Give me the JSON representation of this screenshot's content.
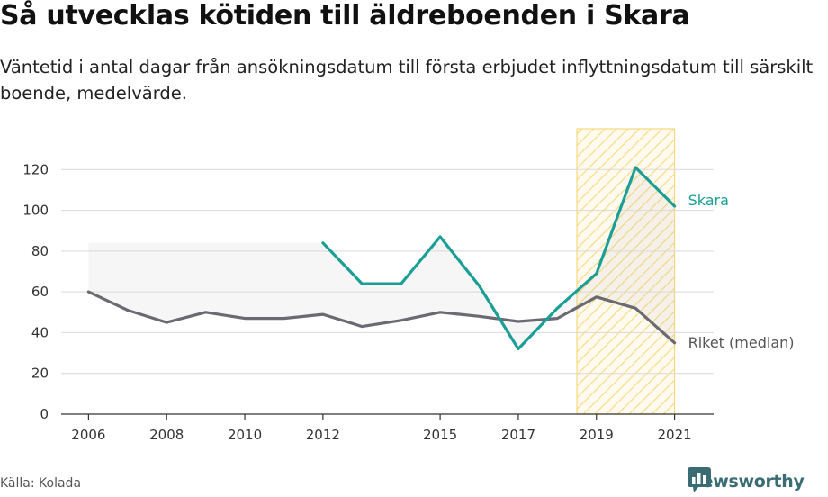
{
  "title": "Så utvecklas kötiden till äldreboenden i Skara",
  "subtitle": "Väntetid i antal dagar från ansökningsdatum till första erbjudet inflyttningsdatum till särskilt boende, medelvärde.",
  "source": "Källa: Kolada",
  "brand": {
    "name": "Newsworthy",
    "icon": "newsworthy-chart-icon",
    "color": "#3a6d73"
  },
  "chart_data": {
    "type": "line",
    "xlim": [
      2005.3,
      2022.0
    ],
    "ylim": [
      0,
      140
    ],
    "x_ticks": [
      "2006",
      "2008",
      "2010",
      "2012",
      "2015",
      "2017",
      "2019",
      "2021"
    ],
    "y_ticks": [
      "0",
      "20",
      "40",
      "60",
      "80",
      "100",
      "120"
    ],
    "grid": true,
    "highlight_band": {
      "x_start": 2018.5,
      "x_end": 2021.0,
      "pattern": "diagonal-hatch",
      "color": "#f8d97a"
    },
    "series": [
      {
        "name": "Skara",
        "color": "#1a9e95",
        "x": [
          2012,
          2013,
          2014,
          2015,
          2016,
          2017,
          2018,
          2019,
          2020,
          2021
        ],
        "y": [
          84,
          64,
          64,
          87,
          63,
          32,
          52,
          69,
          121,
          102
        ]
      },
      {
        "name": "Riket (median)",
        "color": "#6a6a72",
        "x": [
          2006,
          2007,
          2008,
          2009,
          2010,
          2011,
          2012,
          2013,
          2014,
          2015,
          2016,
          2017,
          2018,
          2019,
          2020,
          2021
        ],
        "y": [
          60,
          51,
          45,
          50,
          47,
          47,
          49,
          43,
          46,
          50,
          48,
          45.5,
          47,
          57.5,
          52,
          35
        ]
      }
    ]
  }
}
